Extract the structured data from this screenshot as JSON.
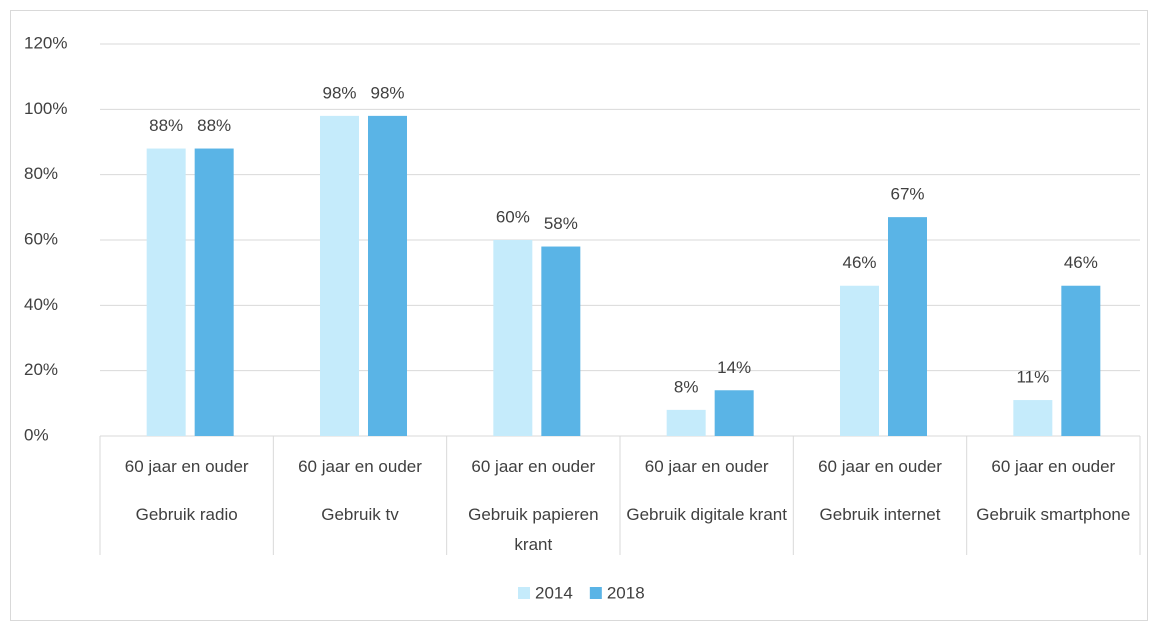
{
  "chart_data": {
    "type": "bar",
    "categories": [
      "Gebruik radio",
      "Gebruik tv",
      "Gebruik papieren krant",
      "Gebruik digitale krant",
      "Gebruik internet",
      "Gebruik smartphone"
    ],
    "subcategories": [
      "60 jaar en ouder",
      "60 jaar en ouder",
      "60 jaar en ouder",
      "60 jaar en ouder",
      "60 jaar en ouder",
      "60 jaar en ouder"
    ],
    "series": [
      {
        "name": "2014",
        "color": "#c5ebfb",
        "values": [
          88,
          98,
          60,
          8,
          46,
          11
        ],
        "value_labels": [
          "88%",
          "98%",
          "60%",
          "8%",
          "46%",
          "11%"
        ]
      },
      {
        "name": "2018",
        "color": "#5ab4e6",
        "values": [
          88,
          98,
          58,
          14,
          67,
          46
        ],
        "value_labels": [
          "88%",
          "98%",
          "58%",
          "14%",
          "67%",
          "46%"
        ]
      }
    ],
    "ylim": [
      0,
      120
    ],
    "yticks": [
      {
        "value": 0,
        "label": "0%"
      },
      {
        "value": 20,
        "label": "20%"
      },
      {
        "value": 40,
        "label": "40%"
      },
      {
        "value": 60,
        "label": "60%"
      },
      {
        "value": 80,
        "label": "80%"
      },
      {
        "value": 100,
        "label": "100%"
      },
      {
        "value": 120,
        "label": "120%"
      }
    ],
    "grid": true,
    "legend": "bottom"
  }
}
